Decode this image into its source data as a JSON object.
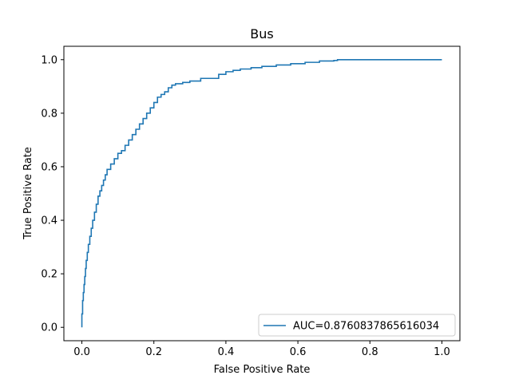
{
  "chart_data": {
    "type": "line",
    "title": "Bus",
    "xlabel": "False Positive Rate",
    "ylabel": "True Positive Rate",
    "xlim": [
      -0.05,
      1.05
    ],
    "ylim": [
      -0.05,
      1.05
    ],
    "xticks": [
      0.0,
      0.2,
      0.4,
      0.6,
      0.8,
      1.0
    ],
    "xtick_labels": [
      "0.0",
      "0.2",
      "0.4",
      "0.6",
      "0.8",
      "1.0"
    ],
    "yticks": [
      0.0,
      0.2,
      0.4,
      0.6,
      0.8,
      1.0
    ],
    "ytick_labels": [
      "0.0",
      "0.2",
      "0.4",
      "0.6",
      "0.8",
      "1.0"
    ],
    "grid": false,
    "legend_position": "lower-right",
    "series": [
      {
        "name": "AUC=0.8760837865616034",
        "color": "#1f77b4",
        "x": [
          0.0,
          0.0,
          0.002,
          0.004,
          0.006,
          0.008,
          0.01,
          0.012,
          0.015,
          0.018,
          0.022,
          0.026,
          0.03,
          0.035,
          0.04,
          0.045,
          0.05,
          0.055,
          0.06,
          0.065,
          0.07,
          0.08,
          0.09,
          0.1,
          0.11,
          0.12,
          0.13,
          0.14,
          0.15,
          0.16,
          0.17,
          0.18,
          0.19,
          0.2,
          0.21,
          0.22,
          0.23,
          0.24,
          0.25,
          0.26,
          0.28,
          0.3,
          0.33,
          0.36,
          0.38,
          0.4,
          0.42,
          0.44,
          0.47,
          0.5,
          0.54,
          0.58,
          0.62,
          0.66,
          0.7,
          0.71,
          0.8,
          0.9,
          1.0
        ],
        "y": [
          0.0,
          0.05,
          0.1,
          0.13,
          0.16,
          0.19,
          0.22,
          0.25,
          0.28,
          0.31,
          0.34,
          0.37,
          0.4,
          0.43,
          0.46,
          0.49,
          0.51,
          0.53,
          0.55,
          0.57,
          0.59,
          0.61,
          0.63,
          0.65,
          0.66,
          0.68,
          0.7,
          0.72,
          0.74,
          0.76,
          0.78,
          0.8,
          0.82,
          0.84,
          0.86,
          0.87,
          0.88,
          0.895,
          0.905,
          0.91,
          0.915,
          0.92,
          0.93,
          0.93,
          0.945,
          0.955,
          0.96,
          0.965,
          0.97,
          0.975,
          0.98,
          0.985,
          0.99,
          0.995,
          0.997,
          1.0,
          1.0,
          1.0,
          1.0
        ]
      }
    ]
  }
}
